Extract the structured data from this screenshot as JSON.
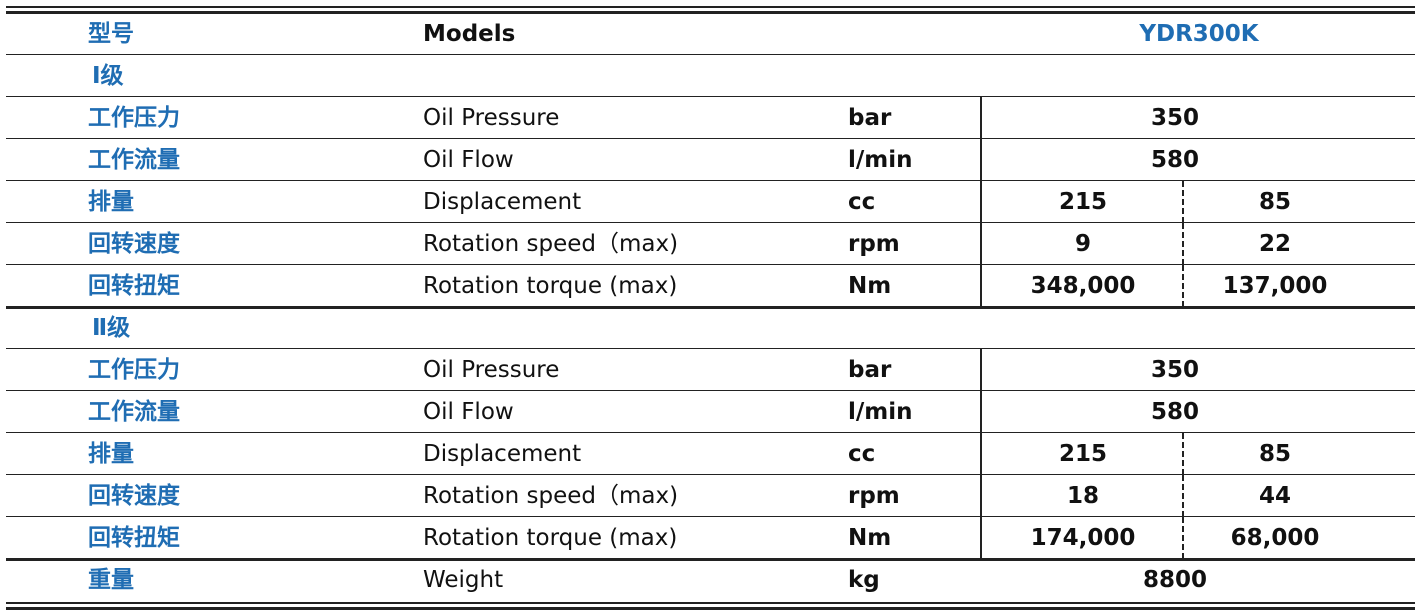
{
  "table": {
    "header": {
      "cn": "型号",
      "en": "Models",
      "model": "YDR300K"
    },
    "sections": [
      {
        "title": "Ⅰ级",
        "rows": [
          {
            "cn": "工作压力",
            "en": "Oil Pressure",
            "unit": "bar",
            "values": [
              "350"
            ]
          },
          {
            "cn": "工作流量",
            "en": "Oil Flow",
            "unit": "l/min",
            "values": [
              "580"
            ]
          },
          {
            "cn": "排量",
            "en": "Displacement",
            "unit": "cc",
            "values": [
              "215",
              "85"
            ]
          },
          {
            "cn": "回转速度",
            "en": "Rotation speed（max)",
            "unit": "rpm",
            "values": [
              "9",
              "22"
            ]
          },
          {
            "cn": "回转扭矩",
            "en": "Rotation torque (max)",
            "unit": "Nm",
            "values": [
              "348,000",
              "137,000"
            ]
          }
        ]
      },
      {
        "title": "Ⅱ级",
        "rows": [
          {
            "cn": "工作压力",
            "en": "Oil Pressure",
            "unit": "bar",
            "values": [
              "350"
            ]
          },
          {
            "cn": "工作流量",
            "en": "Oil Flow",
            "unit": "l/min",
            "values": [
              "580"
            ]
          },
          {
            "cn": "排量",
            "en": "Displacement",
            "unit": "cc",
            "values": [
              "215",
              "85"
            ]
          },
          {
            "cn": "回转速度",
            "en": "Rotation speed（max)",
            "unit": "rpm",
            "values": [
              "18",
              "44"
            ]
          },
          {
            "cn": "回转扭矩",
            "en": "Rotation torque (max)",
            "unit": "Nm",
            "values": [
              "174,000",
              "68,000"
            ]
          }
        ]
      }
    ],
    "footer": {
      "cn": "重量",
      "en": "Weight",
      "unit": "kg",
      "values": [
        "8800"
      ]
    }
  }
}
